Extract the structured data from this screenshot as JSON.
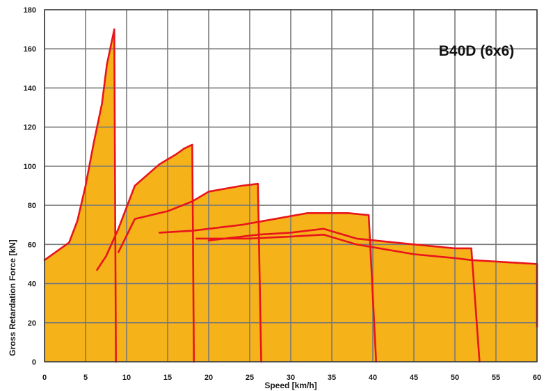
{
  "chart_data": {
    "type": "area",
    "title": "B40D (6x6)",
    "xlabel": "Speed [km/h]",
    "ylabel": "Gross Retardation Force [kN]",
    "xlim": [
      0,
      60
    ],
    "ylim": [
      0,
      180
    ],
    "xticks": [
      "0",
      "5",
      "10",
      "15",
      "20",
      "25",
      "30",
      "35",
      "40",
      "45",
      "50",
      "55",
      "60"
    ],
    "yticks": [
      "0",
      "20",
      "40",
      "60",
      "80",
      "100",
      "120",
      "140",
      "160",
      "180"
    ],
    "grid": true,
    "colors": {
      "fill": "#f5b219",
      "line": "#e8141c",
      "grid": "#7a7a7a"
    },
    "series": [
      {
        "x": [
          0,
          3,
          4,
          5,
          6,
          7,
          7.6,
          8.5,
          8.7
        ],
        "y": [
          52,
          61,
          72,
          90,
          112,
          132,
          152,
          170,
          0
        ]
      },
      {
        "x": [
          6.4,
          7.5,
          9,
          11,
          14,
          16,
          17,
          18,
          18.2
        ],
        "y": [
          47,
          54,
          68,
          90,
          101,
          106,
          109,
          111,
          0
        ]
      },
      {
        "x": [
          9,
          11,
          15,
          18,
          20,
          24,
          26,
          26.4
        ],
        "y": [
          56,
          73,
          77,
          82,
          87,
          90,
          91,
          0
        ]
      },
      {
        "x": [
          14,
          18,
          24,
          28,
          32,
          37,
          39.5,
          40.4
        ],
        "y": [
          66,
          67,
          70,
          73,
          76,
          76,
          75,
          0
        ]
      },
      {
        "x": [
          20,
          26,
          30,
          34,
          38,
          45,
          50,
          52,
          53
        ],
        "y": [
          62,
          65,
          66,
          68,
          63,
          60,
          58,
          58,
          0
        ]
      },
      {
        "x": [
          18.5,
          25,
          30,
          34,
          38,
          45,
          50,
          52,
          60,
          60
        ],
        "y": [
          63,
          63,
          64,
          65,
          60,
          55,
          53,
          52,
          50,
          18
        ]
      }
    ]
  }
}
